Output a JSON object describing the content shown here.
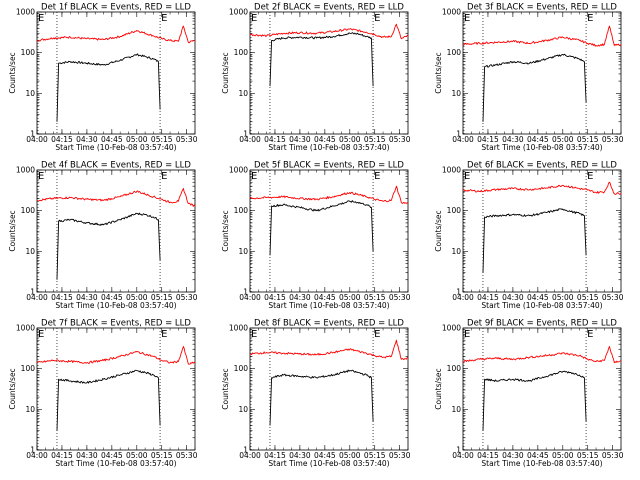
{
  "figure": {
    "title_suffix": "BLACK = Events, RED = LLD",
    "xlabel": "Start Time (10-Feb-08 03:57:40)",
    "ylabel": "Counts/sec",
    "event_marker": "E",
    "x_tick_labels": [
      "04:00",
      "04:15",
      "04:30",
      "04:45",
      "05:00",
      "05:15",
      "05:30"
    ],
    "y_tick_labels": [
      "1",
      "10",
      "100",
      "1000"
    ],
    "colors": {
      "events": "#000000",
      "lld": "#ff0000",
      "marker_line": "#000000"
    }
  },
  "chart_data": [
    {
      "type": "line",
      "title": "Det 1f BLACK = Events, RED = LLD",
      "xlabel": "Start Time (10-Feb-08 03:57:40)",
      "ylabel": "Counts/sec",
      "yscale": "log",
      "ylim": [
        1,
        1000
      ],
      "xlim": [
        "04:00",
        "05:35"
      ],
      "event_markers": [
        "04:12",
        "05:14"
      ],
      "series": [
        {
          "name": "Events",
          "color": "#000000",
          "x": [
            "04:12",
            "04:13",
            "04:20",
            "04:30",
            "04:40",
            "04:50",
            "05:00",
            "05:05",
            "05:10",
            "05:13",
            "05:14"
          ],
          "y": [
            2,
            55,
            60,
            55,
            50,
            65,
            90,
            80,
            70,
            60,
            4
          ]
        },
        {
          "name": "LLD",
          "color": "#ff0000",
          "x": [
            "04:00",
            "04:10",
            "04:20",
            "04:30",
            "04:40",
            "04:50",
            "05:00",
            "05:10",
            "05:15",
            "05:20",
            "05:25",
            "05:28",
            "05:31",
            "05:35"
          ],
          "y": [
            200,
            230,
            240,
            220,
            210,
            250,
            350,
            260,
            220,
            200,
            190,
            450,
            180,
            200
          ]
        }
      ]
    },
    {
      "type": "line",
      "title": "Det 2f BLACK = Events, RED = LLD",
      "xlabel": "Start Time (10-Feb-08 03:57:40)",
      "ylabel": "Counts/sec",
      "yscale": "log",
      "ylim": [
        1,
        1000
      ],
      "xlim": [
        "04:00",
        "05:35"
      ],
      "event_markers": [
        "04:12",
        "05:14"
      ],
      "series": [
        {
          "name": "Events",
          "color": "#000000",
          "x": [
            "04:12",
            "04:13",
            "04:20",
            "04:30",
            "04:40",
            "04:50",
            "05:00",
            "05:05",
            "05:10",
            "05:13",
            "05:14"
          ],
          "y": [
            15,
            200,
            230,
            240,
            230,
            250,
            300,
            290,
            250,
            230,
            15
          ]
        },
        {
          "name": "LLD",
          "color": "#ff0000",
          "x": [
            "04:00",
            "04:10",
            "04:20",
            "04:30",
            "04:40",
            "04:50",
            "05:00",
            "05:10",
            "05:15",
            "05:20",
            "05:25",
            "05:28",
            "05:31",
            "05:35"
          ],
          "y": [
            280,
            260,
            300,
            310,
            300,
            330,
            380,
            320,
            280,
            240,
            250,
            500,
            220,
            260
          ]
        }
      ]
    },
    {
      "type": "line",
      "title": "Det 3f BLACK = Events, RED = LLD",
      "xlabel": "Start Time (10-Feb-08 03:57:40)",
      "ylabel": "Counts/sec",
      "yscale": "log",
      "ylim": [
        1,
        1000
      ],
      "xlim": [
        "04:00",
        "05:35"
      ],
      "event_markers": [
        "04:12",
        "05:14"
      ],
      "series": [
        {
          "name": "Events",
          "color": "#000000",
          "x": [
            "04:12",
            "04:13",
            "04:20",
            "04:30",
            "04:40",
            "04:50",
            "05:00",
            "05:05",
            "05:10",
            "05:13",
            "05:14"
          ],
          "y": [
            2,
            45,
            50,
            60,
            55,
            70,
            90,
            80,
            70,
            60,
            6
          ]
        },
        {
          "name": "LLD",
          "color": "#ff0000",
          "x": [
            "04:00",
            "04:10",
            "04:20",
            "04:30",
            "04:40",
            "04:50",
            "05:00",
            "05:10",
            "05:15",
            "05:20",
            "05:25",
            "05:28",
            "05:31",
            "05:35"
          ],
          "y": [
            160,
            170,
            180,
            190,
            170,
            200,
            240,
            200,
            170,
            150,
            160,
            450,
            150,
            160
          ]
        }
      ]
    },
    {
      "type": "line",
      "title": "Det 4f BLACK = Events, RED = LLD",
      "xlabel": "Start Time (10-Feb-08 03:57:40)",
      "ylabel": "Counts/sec",
      "yscale": "log",
      "ylim": [
        1,
        1000
      ],
      "xlim": [
        "04:00",
        "05:35"
      ],
      "event_markers": [
        "04:12",
        "05:14"
      ],
      "series": [
        {
          "name": "Events",
          "color": "#000000",
          "x": [
            "04:12",
            "04:13",
            "04:20",
            "04:30",
            "04:40",
            "04:50",
            "05:00",
            "05:05",
            "05:10",
            "05:13",
            "05:14"
          ],
          "y": [
            2,
            55,
            60,
            50,
            45,
            60,
            85,
            80,
            70,
            60,
            6
          ]
        },
        {
          "name": "LLD",
          "color": "#ff0000",
          "x": [
            "04:00",
            "04:10",
            "04:20",
            "04:30",
            "04:40",
            "04:50",
            "05:00",
            "05:10",
            "05:15",
            "05:20",
            "05:25",
            "05:28",
            "05:31",
            "05:35"
          ],
          "y": [
            180,
            200,
            210,
            190,
            180,
            220,
            300,
            220,
            190,
            160,
            170,
            350,
            150,
            130
          ]
        }
      ]
    },
    {
      "type": "line",
      "title": "Det 5f BLACK = Events, RED = LLD",
      "xlabel": "Start Time (10-Feb-08 03:57:40)",
      "ylabel": "Counts/sec",
      "yscale": "log",
      "ylim": [
        1,
        1000
      ],
      "xlim": [
        "04:00",
        "05:35"
      ],
      "event_markers": [
        "04:12",
        "05:14"
      ],
      "series": [
        {
          "name": "Events",
          "color": "#000000",
          "x": [
            "04:12",
            "04:13",
            "04:20",
            "04:30",
            "04:40",
            "04:50",
            "05:00",
            "05:05",
            "05:10",
            "05:13",
            "05:14"
          ],
          "y": [
            8,
            130,
            140,
            120,
            100,
            130,
            170,
            160,
            140,
            120,
            10
          ]
        },
        {
          "name": "LLD",
          "color": "#ff0000",
          "x": [
            "04:00",
            "04:10",
            "04:20",
            "04:30",
            "04:40",
            "04:50",
            "05:00",
            "05:10",
            "05:15",
            "05:20",
            "05:25",
            "05:28",
            "05:31",
            "05:35"
          ],
          "y": [
            200,
            210,
            220,
            200,
            190,
            220,
            280,
            220,
            190,
            170,
            180,
            400,
            160,
            150
          ]
        }
      ]
    },
    {
      "type": "line",
      "title": "Det 6f BLACK = Events, RED = LLD",
      "xlabel": "Start Time (10-Feb-08 03:57:40)",
      "ylabel": "Counts/sec",
      "yscale": "log",
      "ylim": [
        1,
        1000
      ],
      "xlim": [
        "04:00",
        "05:35"
      ],
      "event_markers": [
        "04:12",
        "05:14"
      ],
      "series": [
        {
          "name": "Events",
          "color": "#000000",
          "x": [
            "04:12",
            "04:13",
            "04:20",
            "04:30",
            "04:40",
            "04:50",
            "05:00",
            "05:05",
            "05:10",
            "05:13",
            "05:14"
          ],
          "y": [
            3,
            70,
            75,
            80,
            75,
            90,
            110,
            95,
            85,
            75,
            8
          ]
        },
        {
          "name": "LLD",
          "color": "#ff0000",
          "x": [
            "04:00",
            "04:10",
            "04:20",
            "04:30",
            "04:40",
            "04:50",
            "05:00",
            "05:10",
            "05:15",
            "05:20",
            "05:25",
            "05:28",
            "05:31",
            "05:35"
          ],
          "y": [
            320,
            300,
            330,
            350,
            330,
            360,
            420,
            350,
            320,
            280,
            290,
            500,
            260,
            270
          ]
        }
      ]
    },
    {
      "type": "line",
      "title": "Det 7f BLACK = Events, RED = LLD",
      "xlabel": "Start Time (10-Feb-08 03:57:40)",
      "ylabel": "Counts/sec",
      "yscale": "log",
      "ylim": [
        1,
        1000
      ],
      "xlim": [
        "04:00",
        "05:35"
      ],
      "event_markers": [
        "04:12",
        "05:14"
      ],
      "series": [
        {
          "name": "Events",
          "color": "#000000",
          "x": [
            "04:12",
            "04:13",
            "04:20",
            "04:30",
            "04:40",
            "04:50",
            "05:00",
            "05:05",
            "05:10",
            "05:13",
            "05:14"
          ],
          "y": [
            3,
            55,
            50,
            45,
            55,
            70,
            90,
            80,
            70,
            60,
            4
          ]
        },
        {
          "name": "LLD",
          "color": "#ff0000",
          "x": [
            "04:00",
            "04:10",
            "04:20",
            "04:30",
            "04:40",
            "04:50",
            "05:00",
            "05:10",
            "05:15",
            "05:20",
            "05:25",
            "05:28",
            "05:31",
            "05:35"
          ],
          "y": [
            140,
            160,
            150,
            140,
            160,
            200,
            260,
            200,
            160,
            140,
            150,
            350,
            130,
            140
          ]
        }
      ]
    },
    {
      "type": "line",
      "title": "Det 8f BLACK = Events, RED = LLD",
      "xlabel": "Start Time (10-Feb-08 03:57:40)",
      "ylabel": "Counts/sec",
      "yscale": "log",
      "ylim": [
        1,
        1000
      ],
      "xlim": [
        "04:00",
        "05:35"
      ],
      "event_markers": [
        "04:12",
        "05:14"
      ],
      "series": [
        {
          "name": "Events",
          "color": "#000000",
          "x": [
            "04:12",
            "04:13",
            "04:20",
            "04:30",
            "04:40",
            "04:50",
            "05:00",
            "05:05",
            "05:10",
            "05:13",
            "05:14"
          ],
          "y": [
            4,
            60,
            70,
            65,
            60,
            70,
            90,
            80,
            70,
            60,
            5
          ]
        },
        {
          "name": "LLD",
          "color": "#ff0000",
          "x": [
            "04:00",
            "04:10",
            "04:20",
            "04:30",
            "04:40",
            "04:50",
            "05:00",
            "05:10",
            "05:15",
            "05:20",
            "05:25",
            "05:28",
            "05:31",
            "05:35"
          ],
          "y": [
            230,
            250,
            240,
            230,
            220,
            250,
            300,
            240,
            210,
            190,
            200,
            500,
            170,
            180
          ]
        }
      ]
    },
    {
      "type": "line",
      "title": "Det 9f BLACK = Events, RED = LLD",
      "xlabel": "Start Time (10-Feb-08 03:57:40)",
      "ylabel": "Counts/sec",
      "yscale": "log",
      "ylim": [
        1,
        1000
      ],
      "xlim": [
        "04:00",
        "05:35"
      ],
      "event_markers": [
        "04:12",
        "05:14"
      ],
      "series": [
        {
          "name": "Events",
          "color": "#000000",
          "x": [
            "04:12",
            "04:13",
            "04:20",
            "04:30",
            "04:40",
            "04:50",
            "05:00",
            "05:05",
            "05:10",
            "05:13",
            "05:14"
          ],
          "y": [
            3,
            55,
            50,
            55,
            50,
            65,
            85,
            80,
            70,
            60,
            5
          ]
        },
        {
          "name": "LLD",
          "color": "#ff0000",
          "x": [
            "04:00",
            "04:10",
            "04:20",
            "04:30",
            "04:40",
            "04:50",
            "05:00",
            "05:10",
            "05:15",
            "05:20",
            "05:25",
            "05:28",
            "05:31",
            "05:35"
          ],
          "y": [
            150,
            170,
            180,
            170,
            190,
            210,
            240,
            210,
            170,
            150,
            160,
            350,
            140,
            160
          ]
        }
      ]
    }
  ]
}
